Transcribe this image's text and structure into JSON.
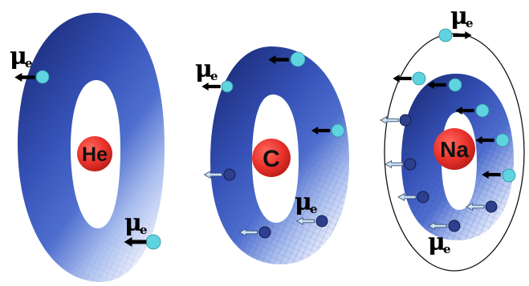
{
  "colors": {
    "torus_dark": "#1d2f7e",
    "torus_mid": "#3a55b8",
    "torus_light": "#dfe7fa",
    "nucleus": "#e8312b",
    "electron_cyan": "#5fd3e0",
    "electron_navy": "#2e3f8f",
    "arrow_black": "#000000",
    "arrow_light": "#b8d8ef"
  },
  "labels": {
    "mu_symbol": "μ",
    "mu_subscript": "e"
  },
  "atoms": [
    {
      "symbol": "He"
    },
    {
      "symbol": "C"
    },
    {
      "symbol": "Na"
    }
  ],
  "icons": {
    "arrow_filled": "arrow-left-filled-icon",
    "arrow_hollow": "arrow-left-hollow-icon"
  }
}
